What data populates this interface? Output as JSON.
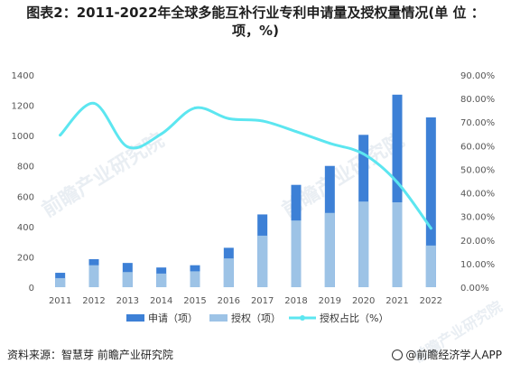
{
  "title_line1": "图表2：2011-2022年全球多能互补行业专利申请量及授权量情况(单 位 ：",
  "title_line2": "项，%)",
  "source": "资料来源：智慧芽 前瞻产业研究院",
  "brand": "@前瞻经济学人APP",
  "watermark": "前瞻产业研究院",
  "colors": {
    "apply": "#3d80d6",
    "grant": "#9dc3e6",
    "ratio": "#5ce6f0",
    "axis_text": "#555555"
  },
  "chart_data": {
    "type": "bar",
    "stacked": true,
    "categories": [
      "2011",
      "2012",
      "2013",
      "2014",
      "2015",
      "2016",
      "2017",
      "2018",
      "2019",
      "2020",
      "2021",
      "2022"
    ],
    "series": [
      {
        "name": "申请（项）",
        "values": [
          95,
          185,
          160,
          130,
          145,
          260,
          480,
          675,
          800,
          1005,
          1270,
          1120
        ]
      },
      {
        "name": "授权（项）",
        "values": [
          60,
          145,
          100,
          90,
          105,
          190,
          340,
          440,
          490,
          565,
          560,
          275
        ]
      },
      {
        "name": "授权占比（%）",
        "axis": "right",
        "type": "line",
        "values": [
          64.5,
          78.0,
          59.5,
          65.0,
          76.0,
          71.5,
          70.5,
          66.0,
          61.0,
          56.5,
          44.5,
          25.0
        ]
      }
    ],
    "ylim_left": [
      0,
      1400
    ],
    "yticks_left": [
      "0",
      "200",
      "400",
      "600",
      "800",
      "1000",
      "1200",
      "1400"
    ],
    "ylim_right": [
      0,
      90
    ],
    "yticks_right": [
      "0.00%",
      "10.00%",
      "20.00%",
      "30.00%",
      "40.00%",
      "50.00%",
      "60.00%",
      "70.00%",
      "80.00%",
      "90.00%"
    ],
    "legend_position": "bottom",
    "grid": false
  }
}
